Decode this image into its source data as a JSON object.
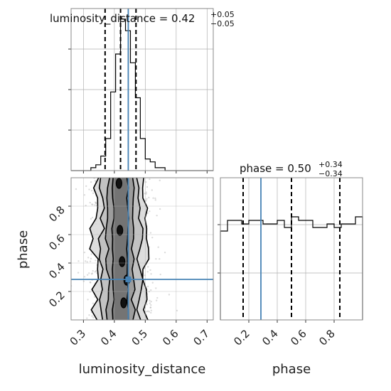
{
  "chart_data": {
    "type": "corner",
    "parameters": [
      "luminosity_distance",
      "phase"
    ],
    "truth": {
      "luminosity_distance": 0.445,
      "phase": 0.285
    },
    "panels": [
      {
        "id": "hist-luminosity-distance",
        "type": "histogram",
        "title_main": "luminosity_distance = 0.42",
        "title_sup": "+0.05",
        "title_sub": "−0.05",
        "xlim": [
          0.26,
          0.72
        ],
        "bins_x": [
          0.26,
          0.276,
          0.292,
          0.308,
          0.324,
          0.34,
          0.356,
          0.372,
          0.388,
          0.404,
          0.42,
          0.436,
          0.452,
          0.468,
          0.484,
          0.5,
          0.516,
          0.532,
          0.548,
          0.564,
          0.58,
          0.596,
          0.612,
          0.628,
          0.644,
          0.66,
          0.676,
          0.692,
          0.708,
          0.72
        ],
        "counts": [
          0,
          0,
          0,
          0,
          1,
          2,
          5,
          11,
          27,
          40,
          52,
          48,
          37,
          25,
          11,
          4,
          3,
          1,
          1,
          0,
          0,
          0,
          0,
          0,
          0,
          0,
          0,
          0,
          0
        ],
        "quantiles": [
          0.37,
          0.42,
          0.47
        ],
        "truth": 0.445,
        "x_ticks": [
          0.3,
          0.4,
          0.5,
          0.6,
          0.7
        ]
      },
      {
        "id": "hist-phase",
        "type": "histogram",
        "title_main": "phase = 0.50",
        "title_sup": "+0.34",
        "title_sub": "−0.34",
        "xlim": [
          0.0,
          1.0
        ],
        "bins_x": [
          0.0,
          0.05,
          0.1,
          0.15,
          0.2,
          0.25,
          0.3,
          0.35,
          0.4,
          0.45,
          0.5,
          0.55,
          0.6,
          0.65,
          0.7,
          0.75,
          0.8,
          0.85,
          0.9,
          0.95,
          1.0
        ],
        "counts": [
          25,
          28,
          28,
          27,
          28,
          28,
          27,
          27,
          28,
          26,
          29,
          28,
          28,
          26,
          26,
          27,
          26,
          27,
          27,
          29
        ],
        "quantiles": [
          0.16,
          0.5,
          0.84
        ],
        "truth": 0.285,
        "x_ticks": [
          0.2,
          0.4,
          0.6,
          0.8
        ],
        "x_tick_labels": [
          "0.2",
          "0.4",
          "0.6",
          "0.8"
        ]
      },
      {
        "id": "scatter-2d",
        "type": "2d-density",
        "x_param": "luminosity_distance",
        "y_param": "phase",
        "xlim": [
          0.26,
          0.72
        ],
        "ylim": [
          0.0,
          1.0
        ],
        "x_ticks": [
          0.3,
          0.4,
          0.5,
          0.6,
          0.7
        ],
        "x_tick_labels": [
          "0.3",
          "0.4",
          "0.5",
          "0.6",
          "0.7"
        ],
        "y_ticks": [
          0.2,
          0.4,
          0.6,
          0.8
        ],
        "y_tick_labels": [
          "0.2",
          "0.4",
          "0.6",
          "0.8"
        ],
        "truth": [
          0.445,
          0.285
        ]
      }
    ],
    "xlabel_left": "luminosity_distance",
    "xlabel_right": "phase",
    "ylabel": "phase",
    "grid": true,
    "colors": {
      "truth": "#4682b4",
      "line": "#000000",
      "grid": "#b0b0b0"
    }
  }
}
